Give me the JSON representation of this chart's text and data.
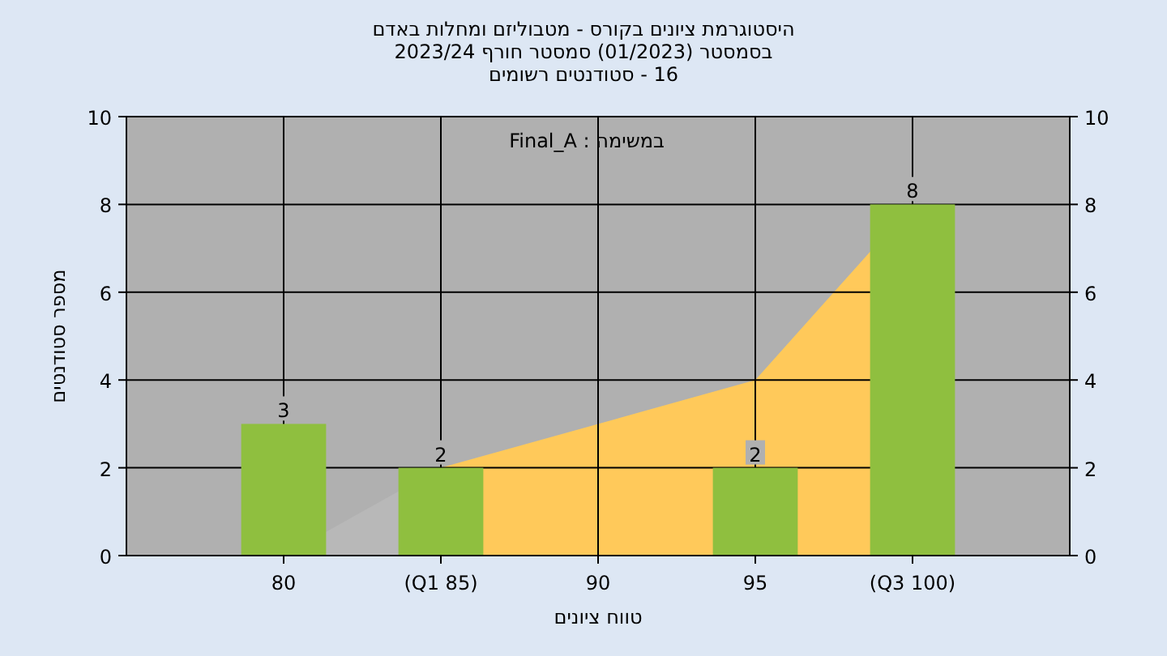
{
  "chart_data": {
    "type": "bar",
    "title": "היסטוגרמת ציונים בקורס - מטבוליזם ומחלות באדם",
    "subtitle": "בסמסטר (01/2023) סמסטר חורף 2023/24",
    "xlabel": "טווח ציונים",
    "ylabel": "מספר סטודנטים",
    "annotations": [
      "16 - סטודנטים רשומים",
      "במשימה : Final_A"
    ],
    "xlim": [
      75,
      105
    ],
    "xticks": [
      80,
      {
        "value": 85,
        "label": "(Q1 85)"
      },
      90,
      95,
      {
        "value": 100,
        "label": "(Q3 100)"
      }
    ],
    "ylim": [
      0,
      10
    ],
    "yticks": [
      0,
      2,
      4,
      6,
      8,
      10
    ],
    "y2lim": [
      0,
      10
    ],
    "y2ticks": [
      0,
      2,
      4,
      6,
      8,
      10
    ],
    "grid": true,
    "series": [
      {
        "type": "area",
        "color": "#b8b8b8",
        "x": [
          80,
          85
        ],
        "values": [
          0,
          2
        ]
      },
      {
        "type": "area",
        "color": "#ffc95a",
        "x": [
          85,
          90,
          95,
          100
        ],
        "values": [
          2,
          3,
          4,
          8
        ]
      },
      {
        "color": "#8fbf3f",
        "x": [
          80,
          85,
          95,
          100
        ],
        "values": [
          3,
          2,
          2,
          8
        ],
        "value_labels": [
          "3",
          "2",
          "2",
          "8"
        ]
      }
    ]
  }
}
